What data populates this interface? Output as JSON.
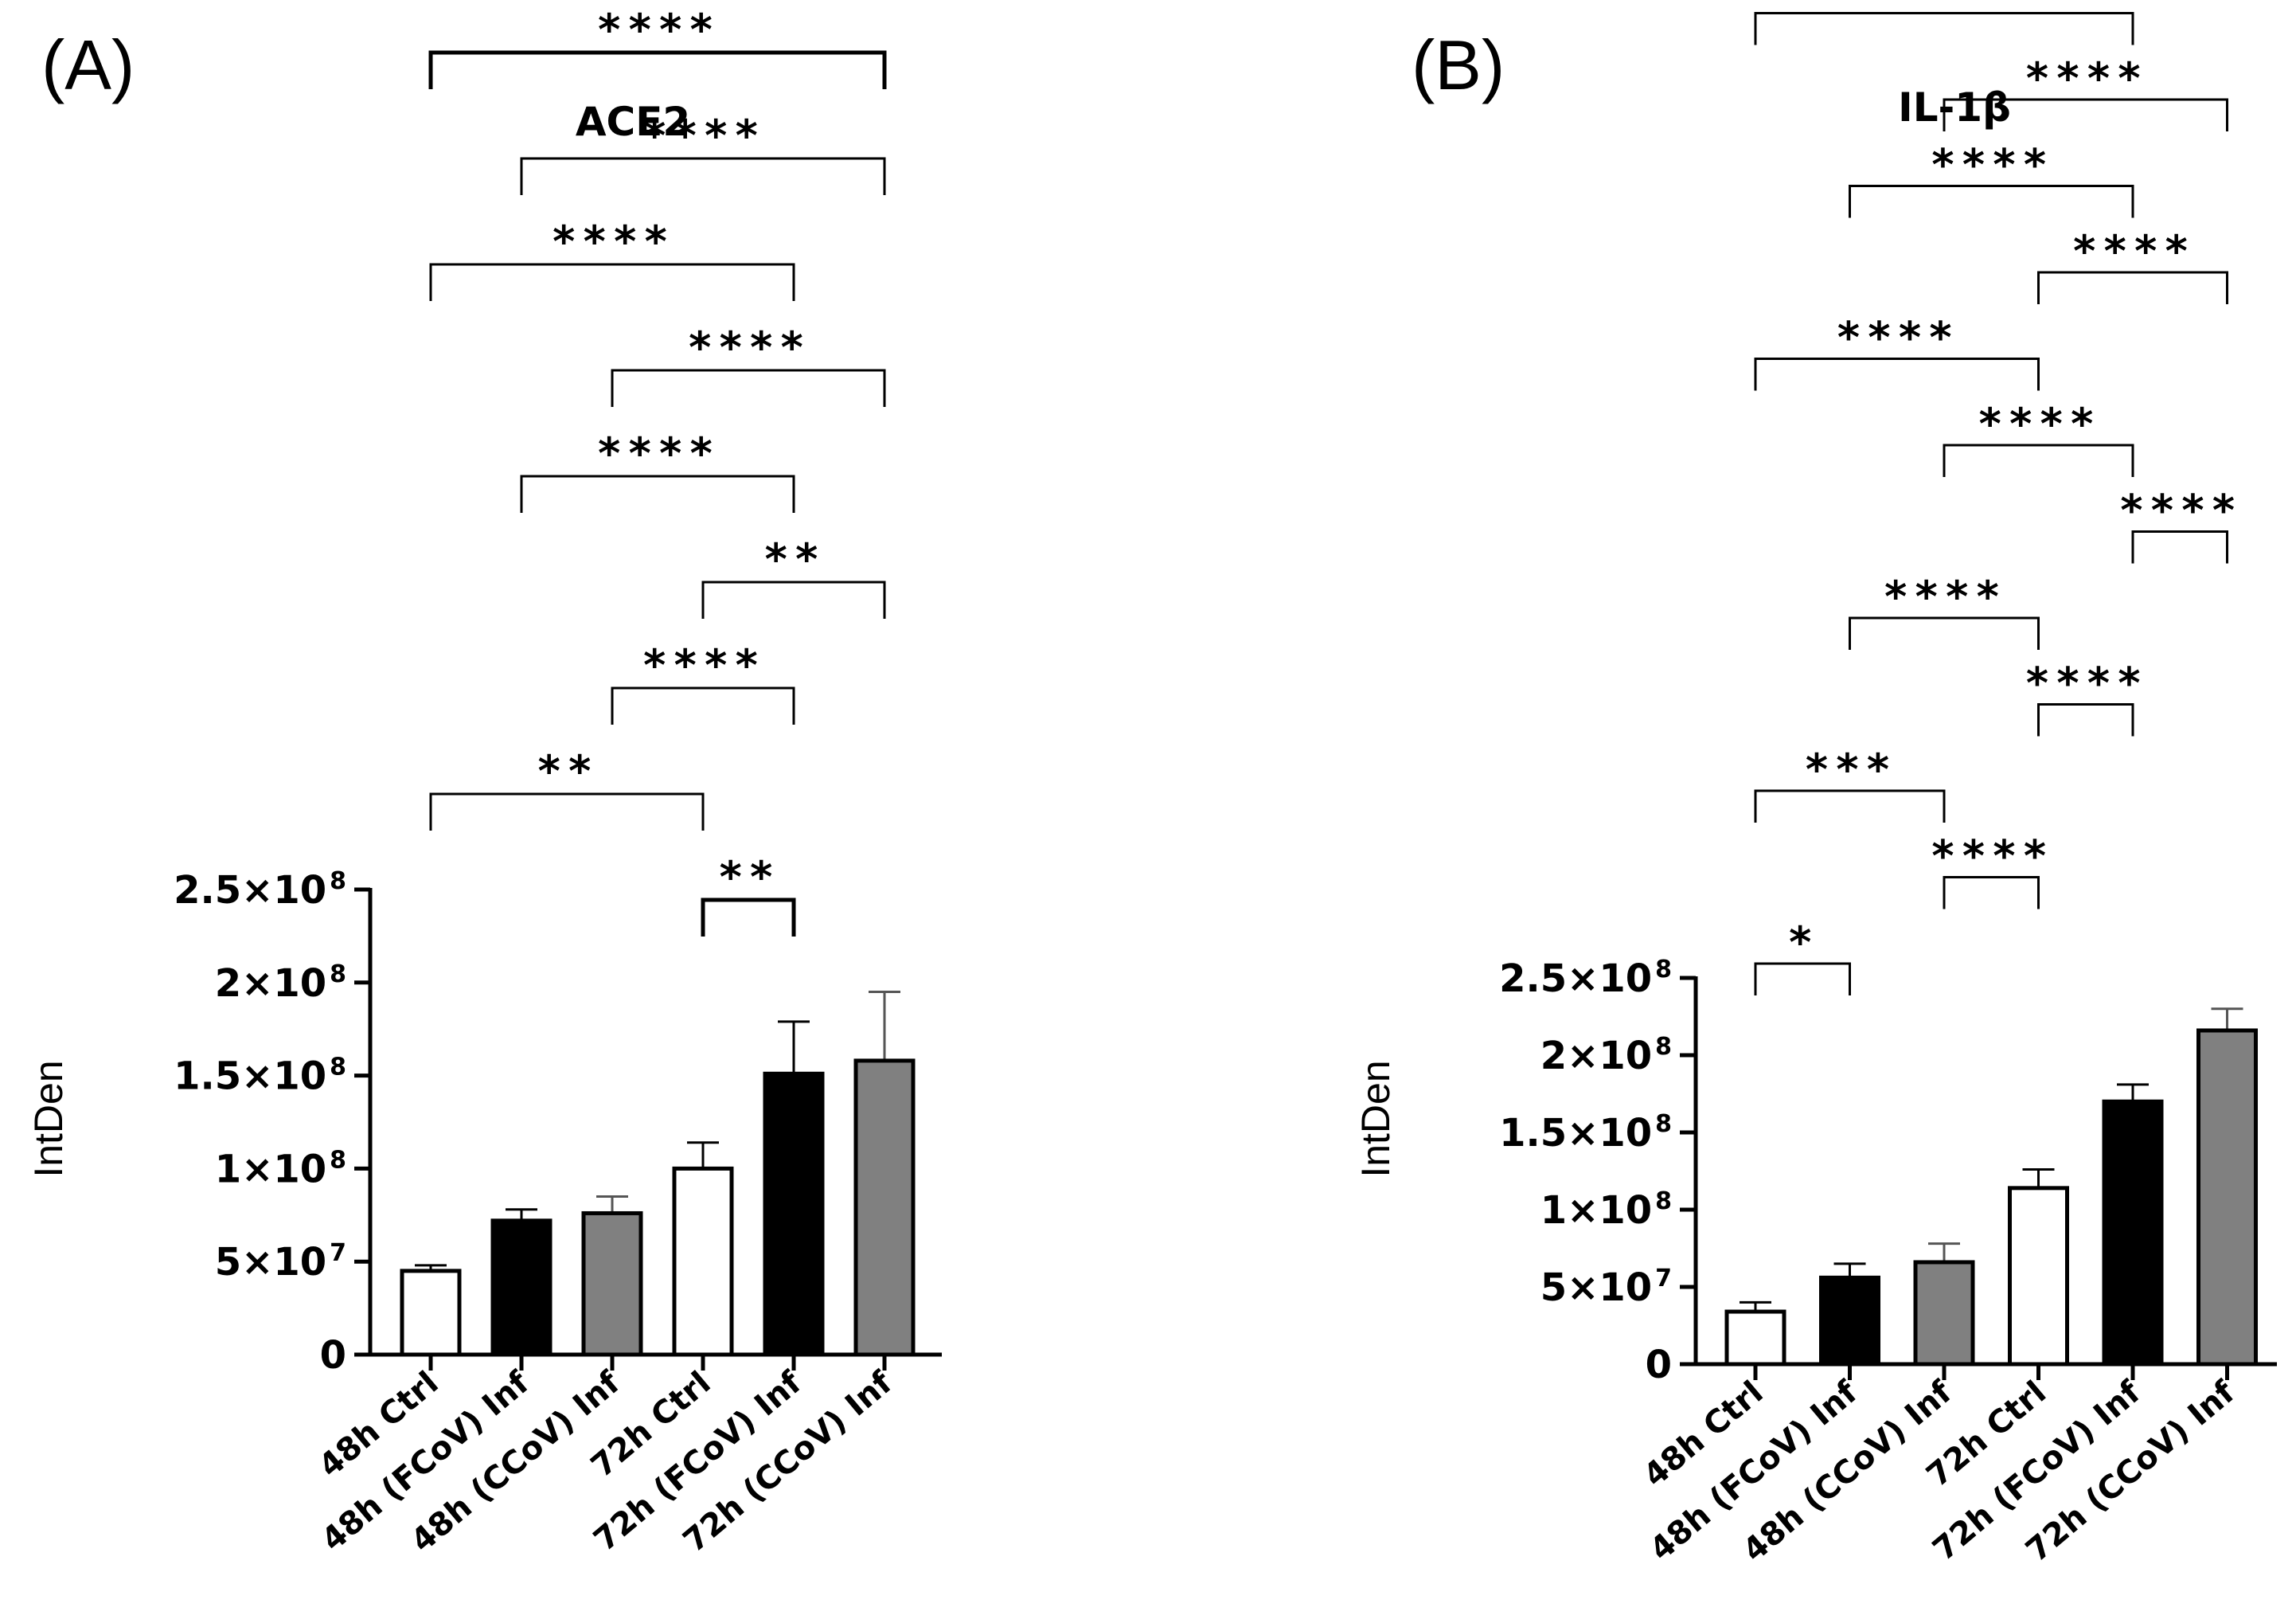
{
  "chart_data": [
    {
      "panel": "(A)",
      "type": "bar",
      "title": "ACE2",
      "ylabel": "IntDen",
      "xlabel": "",
      "ylim": [
        0,
        250000000
      ],
      "yticks": [
        {
          "value": 0,
          "label": "0",
          "exp": ""
        },
        {
          "value": 50000000,
          "label": "5×10",
          "exp": "7"
        },
        {
          "value": 100000000,
          "label": "1×10",
          "exp": "8"
        },
        {
          "value": 150000000,
          "label": "1.5×10",
          "exp": "8"
        },
        {
          "value": 200000000,
          "label": "2×10",
          "exp": "8"
        },
        {
          "value": 250000000,
          "label": "2.5×10",
          "exp": "8"
        }
      ],
      "categories": [
        "48h Ctrl",
        "48h (FCoV) Inf",
        "48h (CCoV) Inf",
        "72h Ctrl",
        "72h (FCoV) Inf",
        "72h (CCoV) Inf"
      ],
      "values": [
        45000000,
        72000000,
        76000000,
        100000000,
        151000000,
        158000000
      ],
      "errors": [
        3000000,
        6000000,
        9000000,
        14000000,
        28000000,
        37000000
      ],
      "colors": [
        "#ffffff",
        "#000000",
        "#808080",
        "#ffffff",
        "#000000",
        "#808080"
      ],
      "grid": false,
      "comparisons": [
        {
          "from": 3,
          "to": 4,
          "label": "**"
        },
        {
          "from": 0,
          "to": 3,
          "label": "**"
        },
        {
          "from": 2,
          "to": 4,
          "label": "****"
        },
        {
          "from": 3,
          "to": 5,
          "label": "**"
        },
        {
          "from": 1,
          "to": 4,
          "label": "****"
        },
        {
          "from": 2,
          "to": 5,
          "label": "****"
        },
        {
          "from": 0,
          "to": 4,
          "label": "****"
        },
        {
          "from": 1,
          "to": 5,
          "label": "****"
        },
        {
          "from": 0,
          "to": 5,
          "label": "****"
        }
      ]
    },
    {
      "panel": "(B)",
      "type": "bar",
      "title": "IL-1β",
      "ylabel": "IntDen",
      "xlabel": "",
      "ylim": [
        0,
        250000000
      ],
      "yticks": [
        {
          "value": 0,
          "label": "0",
          "exp": ""
        },
        {
          "value": 50000000,
          "label": "5×10",
          "exp": "7"
        },
        {
          "value": 100000000,
          "label": "1×10",
          "exp": "8"
        },
        {
          "value": 150000000,
          "label": "1.5×10",
          "exp": "8"
        },
        {
          "value": 200000000,
          "label": "2×10",
          "exp": "8"
        },
        {
          "value": 250000000,
          "label": "2.5×10",
          "exp": "8"
        }
      ],
      "categories": [
        "48h Ctrl",
        "48h (FCoV) Inf",
        "48h (CCoV) Inf",
        "72h Ctrl",
        "72h (FCoV) Inf",
        "72h (CCoV) Inf"
      ],
      "values": [
        34000000,
        56000000,
        66000000,
        114000000,
        170000000,
        216000000
      ],
      "errors": [
        6000000,
        9000000,
        12000000,
        12000000,
        11000000,
        14000000
      ],
      "colors": [
        "#ffffff",
        "#000000",
        "#808080",
        "#ffffff",
        "#000000",
        "#808080"
      ],
      "grid": false,
      "comparisons": [
        {
          "from": 0,
          "to": 1,
          "label": "*"
        },
        {
          "from": 2,
          "to": 3,
          "label": "****"
        },
        {
          "from": 0,
          "to": 2,
          "label": "***"
        },
        {
          "from": 3,
          "to": 4,
          "label": "****"
        },
        {
          "from": 1,
          "to": 3,
          "label": "****"
        },
        {
          "from": 4,
          "to": 5,
          "label": "****"
        },
        {
          "from": 2,
          "to": 4,
          "label": "****"
        },
        {
          "from": 0,
          "to": 3,
          "label": "****"
        },
        {
          "from": 3,
          "to": 5,
          "label": "****"
        },
        {
          "from": 1,
          "to": 4,
          "label": "****"
        },
        {
          "from": 2,
          "to": 5,
          "label": "****"
        },
        {
          "from": 0,
          "to": 4,
          "label": "****"
        },
        {
          "from": 1,
          "to": 5,
          "label": "****"
        },
        {
          "from": 0,
          "to": 5,
          "label": "****"
        }
      ]
    }
  ]
}
